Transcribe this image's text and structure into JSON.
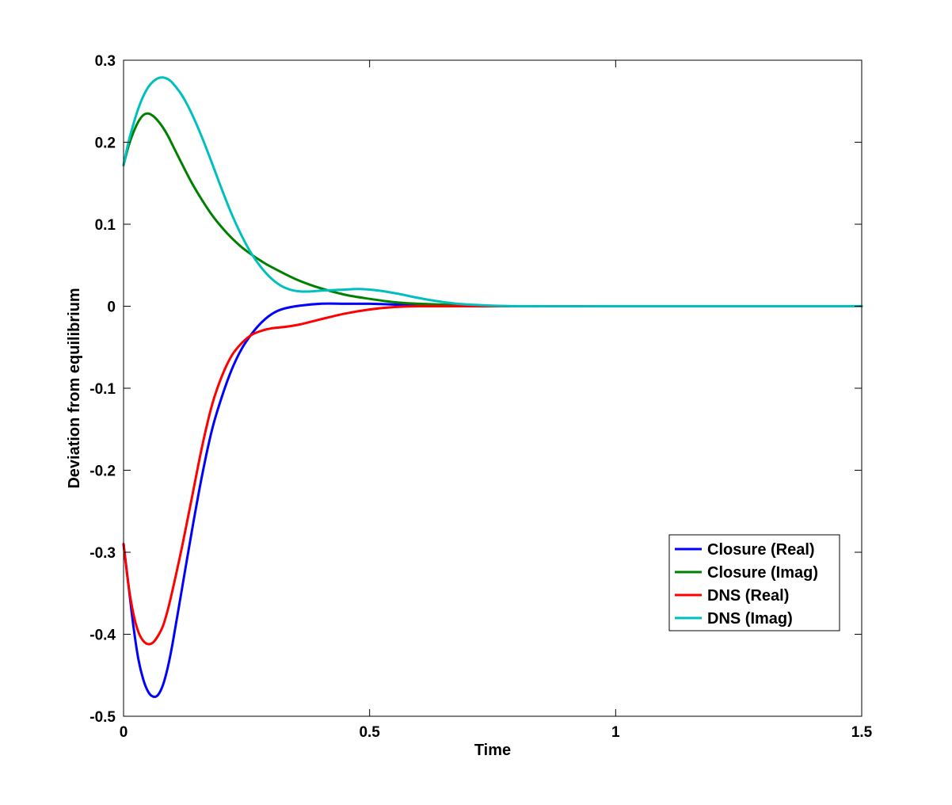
{
  "chart_data": {
    "type": "line",
    "title": "",
    "xlabel": "Time",
    "ylabel": "Deviation from equilibrium",
    "xlim": [
      0,
      1.5
    ],
    "ylim": [
      -0.5,
      0.3
    ],
    "xticks": [
      0,
      0.5,
      1,
      1.5
    ],
    "xtick_labels": [
      "0",
      "0.5",
      "1",
      "1.5"
    ],
    "yticks": [
      -0.5,
      -0.4,
      -0.3,
      -0.2,
      -0.1,
      0,
      0.1,
      0.2,
      0.3
    ],
    "ytick_labels": [
      "-0.5",
      "-0.4",
      "-0.3",
      "-0.2",
      "-0.1",
      "0",
      "0.1",
      "0.2",
      "0.3"
    ],
    "grid": false,
    "legend_position": "lower-right",
    "series": [
      {
        "name": "Closure (Real)",
        "color": "#0000ff",
        "x": [
          0,
          0.01,
          0.02,
          0.03,
          0.04,
          0.05,
          0.06,
          0.07,
          0.08,
          0.09,
          0.1,
          0.12,
          0.14,
          0.16,
          0.18,
          0.2,
          0.22,
          0.24,
          0.26,
          0.28,
          0.3,
          0.32,
          0.35,
          0.4,
          0.45,
          0.5,
          0.55,
          0.6,
          0.7,
          0.8,
          1.0,
          1.2,
          1.5
        ],
        "y": [
          -0.29,
          -0.34,
          -0.39,
          -0.43,
          -0.455,
          -0.47,
          -0.476,
          -0.474,
          -0.462,
          -0.44,
          -0.41,
          -0.34,
          -0.27,
          -0.205,
          -0.15,
          -0.11,
          -0.077,
          -0.052,
          -0.034,
          -0.02,
          -0.01,
          -0.004,
          0.0,
          0.003,
          0.003,
          0.003,
          0.002,
          0.001,
          0.0,
          0.0,
          0.0,
          0.0,
          0.0
        ]
      },
      {
        "name": "Closure (Imag)",
        "color": "#008000",
        "x": [
          0,
          0.01,
          0.02,
          0.03,
          0.04,
          0.05,
          0.06,
          0.07,
          0.08,
          0.09,
          0.1,
          0.12,
          0.14,
          0.16,
          0.18,
          0.2,
          0.22,
          0.24,
          0.26,
          0.28,
          0.3,
          0.35,
          0.4,
          0.45,
          0.5,
          0.55,
          0.6,
          0.7,
          0.8,
          1.0,
          1.2,
          1.5
        ],
        "y": [
          0.172,
          0.195,
          0.212,
          0.225,
          0.233,
          0.235,
          0.232,
          0.226,
          0.218,
          0.208,
          0.196,
          0.172,
          0.149,
          0.129,
          0.111,
          0.096,
          0.083,
          0.072,
          0.063,
          0.055,
          0.048,
          0.033,
          0.022,
          0.014,
          0.009,
          0.005,
          0.003,
          0.001,
          0.0,
          0.0,
          0.0,
          0.0
        ]
      },
      {
        "name": "DNS (Real)",
        "color": "#ff0000",
        "x": [
          0,
          0.01,
          0.02,
          0.03,
          0.04,
          0.05,
          0.06,
          0.07,
          0.08,
          0.09,
          0.1,
          0.12,
          0.14,
          0.16,
          0.18,
          0.2,
          0.22,
          0.24,
          0.26,
          0.28,
          0.3,
          0.33,
          0.36,
          0.4,
          0.45,
          0.5,
          0.55,
          0.6,
          0.7,
          0.8,
          1.0,
          1.2,
          1.5
        ],
        "y": [
          -0.29,
          -0.34,
          -0.375,
          -0.397,
          -0.408,
          -0.412,
          -0.41,
          -0.402,
          -0.39,
          -0.37,
          -0.345,
          -0.29,
          -0.23,
          -0.17,
          -0.12,
          -0.085,
          -0.06,
          -0.045,
          -0.035,
          -0.03,
          -0.027,
          -0.025,
          -0.022,
          -0.016,
          -0.009,
          -0.004,
          -0.001,
          0.0,
          0.0,
          0.0,
          0.0,
          0.0,
          0.0
        ]
      },
      {
        "name": "DNS (Imag)",
        "color": "#00bfbf",
        "x": [
          0,
          0.01,
          0.02,
          0.03,
          0.04,
          0.05,
          0.06,
          0.07,
          0.08,
          0.09,
          0.1,
          0.12,
          0.14,
          0.16,
          0.18,
          0.2,
          0.22,
          0.24,
          0.26,
          0.28,
          0.3,
          0.32,
          0.34,
          0.36,
          0.38,
          0.4,
          0.44,
          0.48,
          0.52,
          0.56,
          0.6,
          0.65,
          0.7,
          0.8,
          1.0,
          1.2,
          1.5
        ],
        "y": [
          0.172,
          0.2,
          0.222,
          0.241,
          0.256,
          0.267,
          0.274,
          0.278,
          0.279,
          0.277,
          0.272,
          0.256,
          0.233,
          0.205,
          0.174,
          0.142,
          0.112,
          0.086,
          0.064,
          0.047,
          0.034,
          0.025,
          0.02,
          0.018,
          0.018,
          0.019,
          0.02,
          0.021,
          0.019,
          0.015,
          0.01,
          0.005,
          0.002,
          0.0,
          0.0,
          0.0,
          0.0
        ]
      }
    ]
  }
}
